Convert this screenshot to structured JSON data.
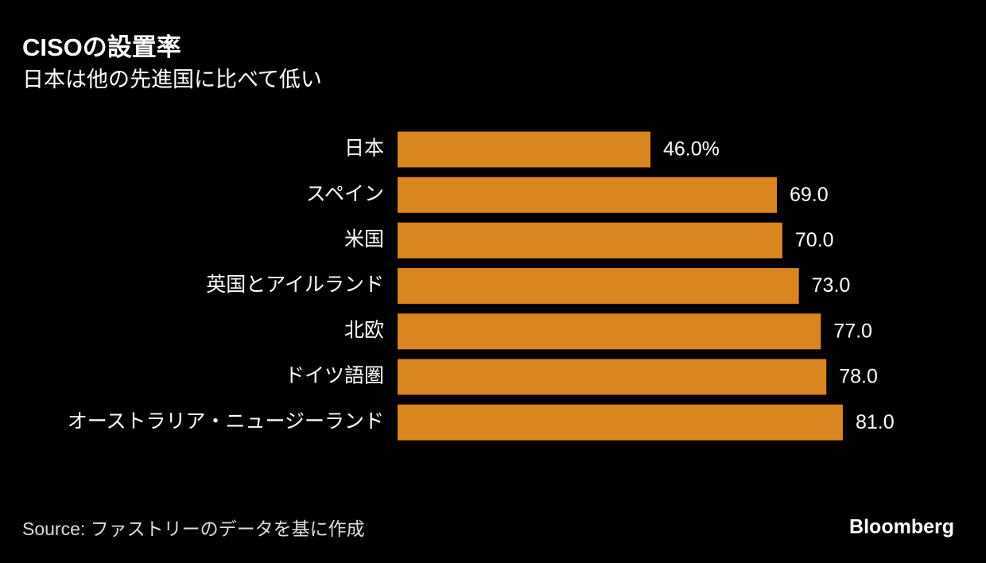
{
  "chart_data": {
    "type": "bar",
    "orientation": "horizontal",
    "title": "CISOの設置率",
    "subtitle": "日本は他の先進国に比べて低い",
    "categories": [
      "日本",
      "スペイン",
      "米国",
      "英国とアイルランド",
      "北欧",
      "ドイツ語圏",
      "オーストラリア・ニュージーランド"
    ],
    "values": [
      46,
      69,
      70,
      73,
      77,
      78,
      81
    ],
    "value_labels": [
      "46.0%",
      "69.0",
      "70.0",
      "73.0",
      "77.0",
      "78.0",
      "81.0"
    ],
    "color": "#d98520",
    "source": "Source:  ファストリーのデータを基に作成",
    "brand": "Bloomberg"
  }
}
